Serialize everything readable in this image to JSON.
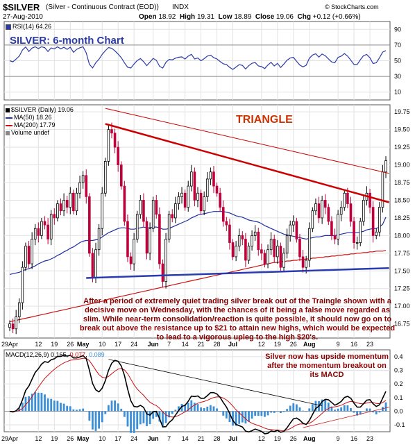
{
  "header": {
    "symbol": "$SILVER",
    "description": "(Silver - Continuous Contract (EOD))",
    "exchange": "INDX",
    "date": "27-Aug-2010",
    "open_label": "Open",
    "open": "18.92",
    "high_label": "High",
    "high": "19.31",
    "low_label": "Low",
    "low": "18.89",
    "close_label": "Close",
    "close": "19.06",
    "chg_label": "Chg",
    "chg": "+0.12 (+0.66%)",
    "source": "© StockCharts.com"
  },
  "title": "SILVER: 6-month Chart",
  "triangle_label": "TRIANGLE",
  "annotation_main": "After a period of extremely quiet trading silver break out of the Traingle shown with a decisive move on Wednesday, with the chances of it being a false move regarded as slim. While near-term consolidation/reaction is quite possible, it should now go on to break out above the resistance up to $21 to attain new highs, which would be expected to lead to a vigorous upleg to the high $20's.",
  "annotation_macd": "Silver now has upside momentum after the momentum breakout on its MACD",
  "rsi_label": "RSI(14) 64.26",
  "price_legend": {
    "main": "$SILVER (Daily) 19.06",
    "ma50": "MA(50) 18.26",
    "ma200": "MA(200) 17.79",
    "volume": "Volume undef"
  },
  "macd_label": {
    "name": "MACD(12,26,9)",
    "v1": "0.165",
    "v2": "0.077",
    "v3": "0.089"
  },
  "colors": {
    "up": "#000000",
    "down": "#c0003a",
    "ma50": "#1f2ea0",
    "ma200": "#cc1010",
    "rsi": "#2b3aa8",
    "trend": "#cc0000",
    "support": "#2a3ab0",
    "hist": "#3c8fd6"
  },
  "chart_data": {
    "type": "candlestick",
    "x_tick_labels": [
      "29Apr",
      "12",
      "19",
      "26",
      "May",
      "10",
      "17",
      "24",
      "Jun",
      "7",
      "14",
      "21",
      "28",
      "Jul",
      "12",
      "19",
      "26",
      "Aug",
      "9",
      "16",
      "23"
    ],
    "price_axis": {
      "ticks": [
        "16.75",
        "17.00",
        "17.25",
        "17.50",
        "17.75",
        "18.00",
        "18.25",
        "18.50",
        "18.75",
        "19.00",
        "19.25",
        "19.50",
        "19.75"
      ],
      "ylim": [
        16.55,
        19.85
      ]
    },
    "rsi_axis": {
      "ticks": [
        "10",
        "30",
        "50",
        "70",
        "90"
      ],
      "ylim": [
        0,
        100
      ]
    },
    "macd_axis": {
      "ticks": [
        "-0.1",
        "0.0",
        "0.1",
        "0.2",
        "0.3",
        "0.4"
      ],
      "ylim": [
        -0.15,
        0.45
      ]
    },
    "closes": [
      16.75,
      16.68,
      16.85,
      17.05,
      17.55,
      17.85,
      17.6,
      17.95,
      18.1,
      18.0,
      18.2,
      18.15,
      17.95,
      18.3,
      18.25,
      18.45,
      18.35,
      18.5,
      18.4,
      18.6,
      18.35,
      18.6,
      18.75,
      18.85,
      18.55,
      17.75,
      17.4,
      17.8,
      18.1,
      18.6,
      19.05,
      19.5,
      19.45,
      19.25,
      19.0,
      18.7,
      18.2,
      17.7,
      17.6,
      17.95,
      18.3,
      18.5,
      18.2,
      17.75,
      18.1,
      18.5,
      18.3,
      17.6,
      17.35,
      17.95,
      18.3,
      18.25,
      18.45,
      18.55,
      18.6,
      18.4,
      18.7,
      18.9,
      18.5,
      18.6,
      18.35,
      18.55,
      18.8,
      18.9,
      18.7,
      18.6,
      18.4,
      18.2,
      18.15,
      17.9,
      17.7,
      17.85,
      18.0,
      17.95,
      17.65,
      17.85,
      18.0,
      18.05,
      17.8,
      17.75,
      17.6,
      17.8,
      17.95,
      17.7,
      17.85,
      17.55,
      17.75,
      18.0,
      18.15,
      18.2,
      17.95,
      17.7,
      17.55,
      17.65,
      18.1,
      18.35,
      18.45,
      18.25,
      18.5,
      18.4,
      18.2,
      18.0,
      17.95,
      18.3,
      18.4,
      18.6,
      18.45,
      18.2,
      17.9,
      17.9,
      18.2,
      18.5,
      18.6,
      18.4,
      18.0,
      18.05,
      18.4,
      18.9,
      19.06
    ],
    "ma50": [
      17.45,
      17.46,
      17.47,
      17.48,
      17.5,
      17.52,
      17.53,
      17.55,
      17.57,
      17.6,
      17.62,
      17.64,
      17.65,
      17.67,
      17.69,
      17.72,
      17.74,
      17.77,
      17.79,
      17.82,
      17.84,
      17.87,
      17.9,
      17.92,
      17.93,
      17.93,
      17.93,
      17.94,
      17.95,
      17.98,
      18.01,
      18.04,
      18.06,
      18.08,
      18.1,
      18.11,
      18.11,
      18.1,
      18.09,
      18.09,
      18.1,
      18.11,
      18.12,
      18.11,
      18.11,
      18.12,
      18.12,
      18.11,
      18.09,
      18.09,
      18.1,
      18.12,
      18.14,
      18.16,
      18.18,
      18.2,
      18.22,
      18.25,
      18.27,
      18.29,
      18.3,
      18.31,
      18.32,
      18.33,
      18.34,
      18.34,
      18.34,
      18.34,
      18.33,
      18.32,
      18.3,
      18.28,
      18.27,
      18.26,
      18.24,
      18.22,
      18.21,
      18.2,
      18.19,
      18.17,
      18.14,
      18.12,
      18.1,
      18.08,
      18.06,
      18.04,
      18.02,
      18.01,
      18.0,
      17.99,
      17.98,
      17.97,
      17.96,
      17.95,
      17.96,
      17.97,
      17.98,
      17.98,
      17.99,
      18.0,
      18.0,
      18.0,
      18.0,
      18.01,
      18.02,
      18.03,
      18.04,
      18.04,
      18.04,
      18.04,
      18.05,
      18.06,
      18.08,
      18.09,
      18.1,
      18.1,
      18.12,
      18.16,
      18.26
    ],
    "ma200": [
      16.78,
      16.79,
      16.8,
      16.81,
      16.82,
      16.83,
      16.84,
      16.85,
      16.86,
      16.87,
      16.88,
      16.89,
      16.9,
      16.91,
      16.92,
      16.93,
      16.94,
      16.95,
      16.96,
      16.97,
      16.98,
      16.99,
      17.0,
      17.01,
      17.02,
      17.03,
      17.04,
      17.05,
      17.06,
      17.07,
      17.08,
      17.1,
      17.11,
      17.12,
      17.13,
      17.14,
      17.15,
      17.16,
      17.17,
      17.18,
      17.19,
      17.2,
      17.21,
      17.22,
      17.23,
      17.24,
      17.25,
      17.26,
      17.27,
      17.28,
      17.29,
      17.3,
      17.31,
      17.32,
      17.33,
      17.34,
      17.35,
      17.36,
      17.37,
      17.38,
      17.39,
      17.4,
      17.41,
      17.42,
      17.43,
      17.44,
      17.45,
      17.46,
      17.47,
      17.48,
      17.49,
      17.5,
      17.51,
      17.52,
      17.53,
      17.54,
      17.55,
      17.56,
      17.57,
      17.58,
      17.59,
      17.6,
      17.61,
      17.62,
      17.62,
      17.63,
      17.63,
      17.64,
      17.64,
      17.65,
      17.65,
      17.66,
      17.66,
      17.67,
      17.67,
      17.68,
      17.68,
      17.69,
      17.69,
      17.7,
      17.7,
      17.71,
      17.71,
      17.72,
      17.72,
      17.73,
      17.73,
      17.74,
      17.74,
      17.75,
      17.75,
      17.76,
      17.76,
      17.77,
      17.77,
      17.78,
      17.78,
      17.78,
      17.79
    ],
    "upper_trendline": [
      [
        30,
        19.8
      ],
      [
        119,
        18.88
      ]
    ],
    "triangle_top": [
      [
        30,
        19.58
      ],
      [
        119,
        18.47
      ]
    ],
    "support_line": [
      [
        24,
        17.4
      ],
      [
        119,
        17.54
      ]
    ]
  }
}
